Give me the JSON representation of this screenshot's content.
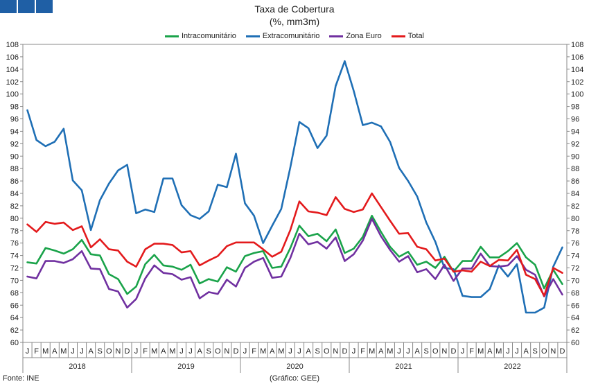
{
  "header": {
    "title_line1": "Taxa de Cobertura",
    "title_line2": "(%, mm3m)"
  },
  "footer": {
    "source": "Fonte: INE",
    "credit": "(Gráfico: GEE)"
  },
  "colors": {
    "brand_blocks": "#1f5fa5"
  },
  "chart_data": {
    "type": "line",
    "ylim": [
      60,
      108
    ],
    "ytick_step": 2,
    "grid": false,
    "legend_position": "top-center",
    "month_labels": [
      "J",
      "F",
      "M",
      "A",
      "M",
      "J",
      "J",
      "A",
      "S",
      "O",
      "N",
      "D"
    ],
    "years": [
      "2018",
      "2019",
      "2020",
      "2021",
      "2022"
    ],
    "series": [
      {
        "name": "Intracomunitário",
        "color": "#1aa34a",
        "values": [
          72.9,
          72.7,
          75.2,
          74.8,
          74.3,
          75.0,
          76.5,
          74.2,
          74.0,
          71.0,
          70.2,
          67.8,
          69.0,
          72.6,
          74.1,
          72.4,
          72.2,
          71.7,
          72.5,
          69.5,
          70.2,
          69.8,
          72.1,
          71.4,
          73.9,
          74.4,
          74.7,
          72.0,
          72.2,
          75.2,
          78.8,
          77.1,
          77.5,
          76.3,
          78.2,
          74.4,
          75.1,
          77.0,
          80.4,
          77.8,
          75.4,
          73.8,
          74.6,
          72.5,
          73.0,
          72.0,
          73.8,
          71.4,
          73.1,
          73.1,
          75.4,
          73.7,
          73.7,
          74.7,
          76.0,
          73.7,
          72.5,
          68.7,
          71.7,
          69.4
        ]
      },
      {
        "name": "Extracomunitário",
        "color": "#1f6fb5",
        "values": [
          97.4,
          92.6,
          91.6,
          92.3,
          94.4,
          86.1,
          84.5,
          78.1,
          82.9,
          85.6,
          87.7,
          88.6,
          80.8,
          81.4,
          81.0,
          86.4,
          86.4,
          82.1,
          80.5,
          79.9,
          81.1,
          85.4,
          85.0,
          90.4,
          82.4,
          80.4,
          76.0,
          78.8,
          81.5,
          88.2,
          95.5,
          94.5,
          91.3,
          93.3,
          101.3,
          105.3,
          100.5,
          95.0,
          95.4,
          94.8,
          92.3,
          88.1,
          86.0,
          83.5,
          79.3,
          76.2,
          72.0,
          71.8,
          67.5,
          67.3,
          67.3,
          68.6,
          72.4,
          70.6,
          72.6,
          64.8,
          64.8,
          65.6,
          72.2,
          75.3
        ]
      },
      {
        "name": "Zona Euro",
        "color": "#7030a0",
        "values": [
          70.6,
          70.3,
          73.1,
          73.1,
          72.8,
          73.4,
          74.7,
          71.9,
          71.8,
          68.6,
          68.2,
          65.6,
          67.0,
          70.3,
          72.4,
          71.2,
          71.0,
          70.1,
          70.5,
          67.1,
          68.1,
          67.8,
          70.1,
          69.0,
          72.0,
          73.0,
          73.6,
          70.4,
          70.6,
          73.6,
          77.5,
          75.8,
          76.2,
          75.1,
          76.9,
          73.1,
          74.2,
          76.4,
          79.9,
          77.1,
          74.9,
          73.0,
          73.9,
          71.3,
          71.8,
          70.2,
          72.5,
          69.9,
          71.9,
          71.9,
          74.3,
          72.3,
          72.2,
          72.4,
          73.9,
          71.7,
          70.9,
          67.4,
          70.2,
          67.7
        ]
      },
      {
        "name": "Total",
        "color": "#e31a1c",
        "values": [
          79.0,
          77.8,
          79.4,
          79.1,
          79.3,
          78.1,
          78.7,
          75.3,
          76.6,
          75.0,
          74.8,
          73.0,
          72.2,
          75.0,
          75.9,
          75.9,
          75.7,
          74.5,
          74.7,
          72.4,
          73.2,
          73.9,
          75.5,
          76.1,
          76.1,
          76.1,
          75.0,
          73.8,
          74.6,
          78.1,
          82.7,
          81.1,
          80.9,
          80.5,
          83.4,
          81.5,
          81.0,
          81.4,
          84.0,
          81.8,
          79.6,
          77.5,
          77.6,
          75.4,
          75.0,
          73.2,
          73.5,
          71.4,
          71.6,
          71.4,
          73.0,
          72.3,
          73.3,
          73.2,
          74.9,
          70.9,
          70.2,
          67.5,
          72.0,
          71.2
        ]
      }
    ]
  }
}
